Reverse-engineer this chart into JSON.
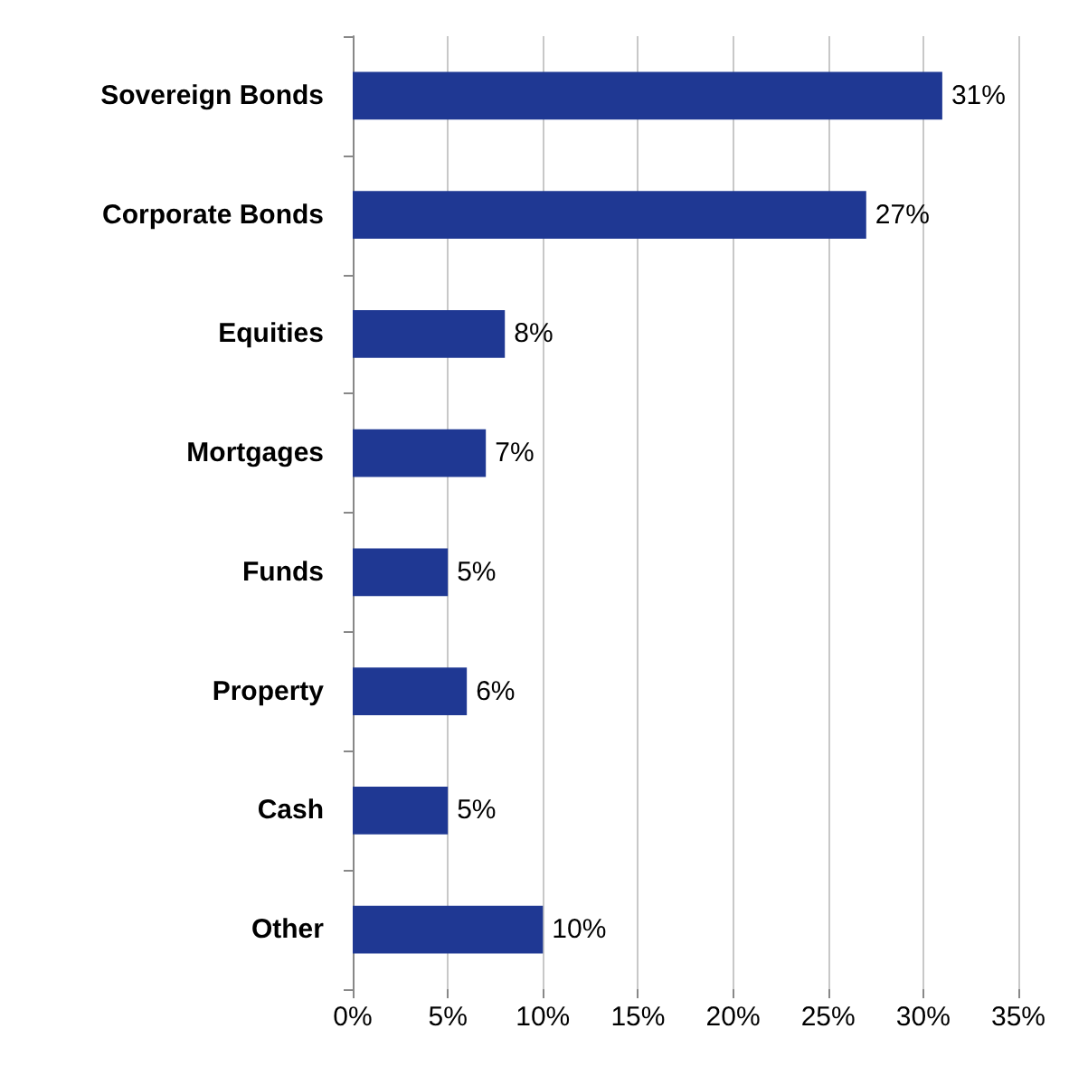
{
  "chart_data": {
    "type": "bar",
    "orientation": "horizontal",
    "categories": [
      "Sovereign Bonds",
      "Corporate Bonds",
      "Equities",
      "Mortgages",
      "Funds",
      "Property",
      "Cash",
      "Other"
    ],
    "values": [
      31,
      27,
      8,
      7,
      5,
      6,
      5,
      10
    ],
    "value_labels": [
      "31%",
      "27%",
      "8%",
      "7%",
      "5%",
      "6%",
      "5%",
      "10%"
    ],
    "color": "#1f3893",
    "xlim": [
      0,
      35
    ],
    "xticks": [
      {
        "value": 0,
        "label": "0%"
      },
      {
        "value": 5,
        "label": "5%"
      },
      {
        "value": 10,
        "label": "10%"
      },
      {
        "value": 15,
        "label": "15%"
      },
      {
        "value": 20,
        "label": "20%"
      },
      {
        "value": 25,
        "label": "25%"
      },
      {
        "value": 30,
        "label": "30%"
      },
      {
        "value": 35,
        "label": "35%"
      }
    ],
    "grid": "x"
  }
}
